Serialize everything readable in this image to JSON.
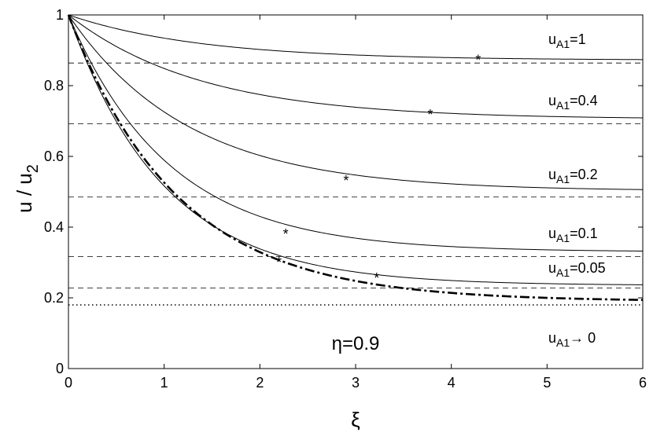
{
  "chart_data": {
    "type": "line",
    "xlabel": "ξ",
    "ylabel": "u / u",
    "ylabel_sub": "2",
    "xlim": [
      0,
      6
    ],
    "ylim": [
      0,
      1
    ],
    "x_ticks": [
      "0",
      "1",
      "2",
      "3",
      "4",
      "5",
      "6"
    ],
    "y_ticks": [
      "0",
      "0.2",
      "0.4",
      "0.6",
      "0.8",
      "1"
    ],
    "grid": false,
    "annotation": "η=0.9",
    "series": [
      {
        "label_main": "u",
        "label_sub": "A1",
        "label_rest": "=1",
        "style": "solid",
        "y0": 1,
        "asymptote": 0.872,
        "k": 0.72,
        "dashed_level": 0.864,
        "star": [
          4.28,
          0.877
        ]
      },
      {
        "label_main": "u",
        "label_sub": "A1",
        "label_rest": "=0.4",
        "style": "solid",
        "y0": 1,
        "asymptote": 0.705,
        "k": 0.72,
        "dashed_level": 0.692,
        "star": [
          3.78,
          0.722
        ]
      },
      {
        "label_main": "u",
        "label_sub": "A1",
        "label_rest": "=0.2",
        "style": "solid",
        "y0": 1,
        "asymptote": 0.502,
        "k": 0.8,
        "dashed_level": 0.485,
        "star": [
          2.9,
          0.536
        ]
      },
      {
        "label_main": "u",
        "label_sub": "A1",
        "label_rest": "=0.1",
        "style": "solid",
        "y0": 1,
        "asymptote": 0.33,
        "k": 0.95,
        "dashed_level": 0.317,
        "star": [
          2.27,
          0.385
        ]
      },
      {
        "label_main": "u",
        "label_sub": "A1",
        "label_rest": "=0.05",
        "style": "solid",
        "y0": 1,
        "asymptote": 0.235,
        "k": 1.0,
        "dashed_level": 0.228,
        "star": [
          2.2,
          0.305
        ]
      },
      {
        "label_main": "u",
        "label_sub": "A1",
        "label_rest": "→ 0",
        "style": "dashdot",
        "y0": 1,
        "asymptote": 0.19,
        "k": 0.88,
        "dashed_level": 0.18,
        "star": [
          3.22,
          0.26
        ]
      }
    ]
  }
}
